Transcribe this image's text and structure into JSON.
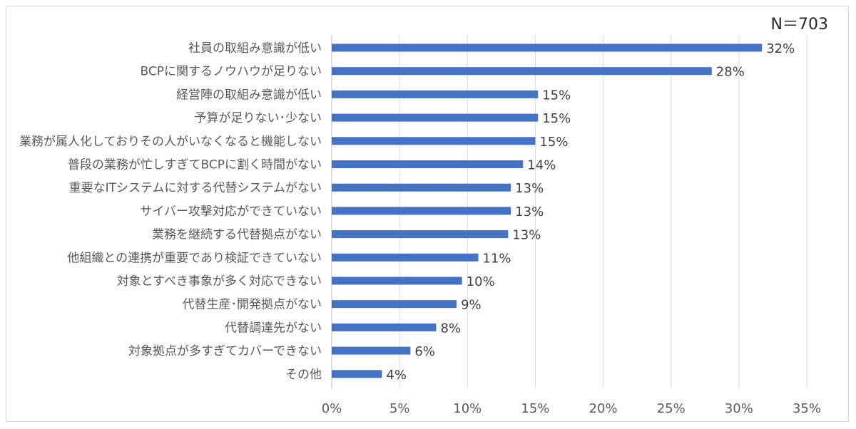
{
  "chart_data": {
    "type": "bar",
    "orientation": "horizontal",
    "annotation": "N＝703",
    "categories": [
      "社員の取組み意識が低い",
      "BCPに関するノウハウが足りない",
      "経営陣の取組み意識が低い",
      "予算が足りない･少ない",
      "業務が属人化しておりその人がいなくなると機能しない",
      "普段の業務が忙しすぎてBCPに割く時間がない",
      "重要なITシステムに対する代替システムがない",
      "サイバー攻撃対応ができていない",
      "業務を継続する代替拠点がない",
      "他組織との連携が重要であり検証できていない",
      "対象とすべき事象が多く対応できない",
      "代替生産･開発拠点がない",
      "代替調達先がない",
      "対象拠点が多すぎてカバーできない",
      "その他"
    ],
    "values": [
      31.7,
      28.0,
      15.2,
      15.2,
      15.0,
      14.1,
      13.2,
      13.2,
      13.0,
      10.8,
      9.6,
      9.2,
      7.7,
      5.8,
      3.7
    ],
    "data_labels": [
      "32%",
      "28%",
      "15%",
      "15%",
      "15%",
      "14%",
      "13%",
      "13%",
      "13%",
      "11%",
      "10%",
      "9%",
      "8%",
      "6%",
      "4%"
    ],
    "xlim": [
      0,
      35
    ],
    "xticks": [
      0,
      5,
      10,
      15,
      20,
      25,
      30,
      35
    ],
    "xtick_labels": [
      "0%",
      "5%",
      "10%",
      "15%",
      "20%",
      "25%",
      "30%",
      "35%"
    ],
    "grid": "vertical",
    "legend": "none",
    "colors": {
      "bar": "#4472c4",
      "grid": "#d9d9d9",
      "text": "#595959"
    }
  }
}
